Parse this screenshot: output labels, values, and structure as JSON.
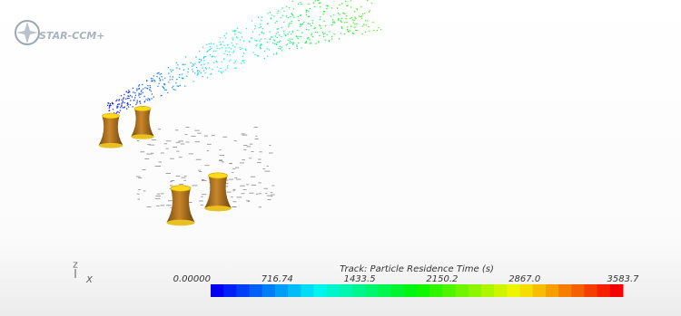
{
  "logo": {
    "text": "STAR-CCM+"
  },
  "triad": {
    "z": "Z",
    "x": "X"
  },
  "colorbar": {
    "title": "Track: Particle Residence Time (s)",
    "ticks": [
      "0.00000",
      "716.74",
      "1433.5",
      "2150.2",
      "2867.0",
      "3583.7"
    ]
  }
}
